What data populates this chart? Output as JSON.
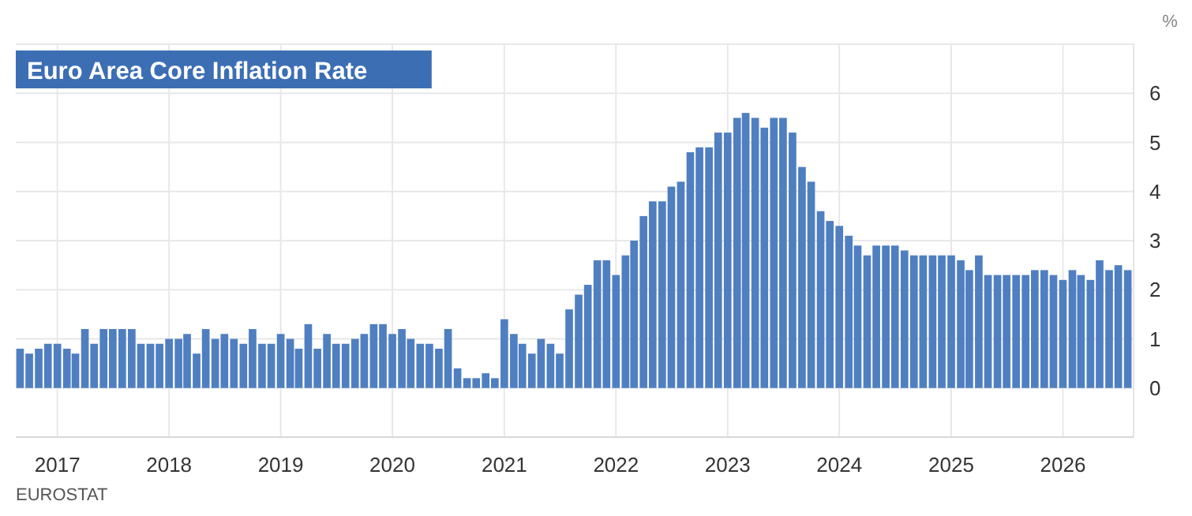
{
  "chart_data": {
    "type": "bar",
    "title": "Euro Area Core Inflation Rate",
    "ylabel": "%",
    "annotations": [
      "EUROSTAT"
    ],
    "x": [
      "2016-09",
      "2016-10",
      "2016-11",
      "2016-12",
      "2017-01",
      "2017-02",
      "2017-03",
      "2017-04",
      "2017-05",
      "2017-06",
      "2017-07",
      "2017-08",
      "2017-09",
      "2017-10",
      "2017-11",
      "2017-12",
      "2018-01",
      "2018-02",
      "2018-03",
      "2018-04",
      "2018-05",
      "2018-06",
      "2018-07",
      "2018-08",
      "2018-09",
      "2018-10",
      "2018-11",
      "2018-12",
      "2019-01",
      "2019-02",
      "2019-03",
      "2019-04",
      "2019-05",
      "2019-06",
      "2019-07",
      "2019-08",
      "2019-09",
      "2019-10",
      "2019-11",
      "2019-12",
      "2020-01",
      "2020-02",
      "2020-03",
      "2020-04",
      "2020-05",
      "2020-06",
      "2020-07",
      "2020-08",
      "2020-09",
      "2020-10",
      "2020-11",
      "2020-12",
      "2021-01",
      "2021-02",
      "2021-03",
      "2021-04",
      "2021-05",
      "2021-06",
      "2021-07",
      "2021-08",
      "2021-09",
      "2021-10",
      "2021-11",
      "2021-12",
      "2022-01",
      "2022-02",
      "2022-03",
      "2022-04",
      "2022-05",
      "2022-06",
      "2022-07",
      "2022-08",
      "2022-09",
      "2022-10",
      "2022-11",
      "2022-12",
      "2023-01",
      "2023-02",
      "2023-03",
      "2023-04",
      "2023-05",
      "2023-06",
      "2023-07",
      "2023-08",
      "2023-09",
      "2023-10",
      "2023-11",
      "2023-12",
      "2024-01",
      "2024-02",
      "2024-03",
      "2024-04",
      "2024-05",
      "2024-06",
      "2024-07",
      "2024-08",
      "2024-09",
      "2024-10",
      "2024-11",
      "2024-12",
      "2025-01",
      "2025-02",
      "2025-03",
      "2025-04",
      "2025-05",
      "2025-06",
      "2025-07",
      "2025-08",
      "2025-09",
      "2025-10",
      "2025-11",
      "2025-12",
      "2026-01",
      "2026-02",
      "2026-03",
      "2026-04",
      "2026-05",
      "2026-06",
      "2026-07",
      "2026-08"
    ],
    "values": [
      0.8,
      0.7,
      0.8,
      0.9,
      0.9,
      0.8,
      0.7,
      1.2,
      0.9,
      1.2,
      1.2,
      1.2,
      1.2,
      0.9,
      0.9,
      0.9,
      1.0,
      1.0,
      1.1,
      0.7,
      1.2,
      1.0,
      1.1,
      1.0,
      0.9,
      1.2,
      0.9,
      0.9,
      1.1,
      1.0,
      0.8,
      1.3,
      0.8,
      1.1,
      0.9,
      0.9,
      1.0,
      1.1,
      1.3,
      1.3,
      1.1,
      1.2,
      1.0,
      0.9,
      0.9,
      0.8,
      1.2,
      0.4,
      0.2,
      0.2,
      0.3,
      0.2,
      1.4,
      1.1,
      0.9,
      0.7,
      1.0,
      0.9,
      0.7,
      1.6,
      1.9,
      2.1,
      2.6,
      2.6,
      2.3,
      2.7,
      3.0,
      3.5,
      3.8,
      3.8,
      4.1,
      4.2,
      4.8,
      4.9,
      4.9,
      5.2,
      5.2,
      5.5,
      5.6,
      5.5,
      5.3,
      5.5,
      5.5,
      5.2,
      4.5,
      4.2,
      3.6,
      3.4,
      3.3,
      3.1,
      2.9,
      2.7,
      2.9,
      2.9,
      2.9,
      2.8,
      2.7,
      2.7,
      2.7,
      2.7,
      2.7,
      2.6,
      2.4,
      2.7,
      2.3,
      2.3,
      2.3,
      2.3,
      2.3,
      2.4,
      2.4,
      2.3,
      2.2,
      2.4,
      2.3,
      2.2,
      2.6,
      2.4,
      2.5,
      2.4
    ],
    "color": "#4f7fc0",
    "xlim": [
      "2016-08-18",
      "2026-08-20"
    ],
    "xticks": [
      "2017",
      "2018",
      "2019",
      "2020",
      "2021",
      "2022",
      "2023",
      "2024",
      "2025",
      "2026"
    ],
    "ylim": [
      -1,
      7
    ],
    "yticks": [
      0,
      1,
      2,
      3,
      4,
      5,
      6
    ],
    "grid": true
  }
}
